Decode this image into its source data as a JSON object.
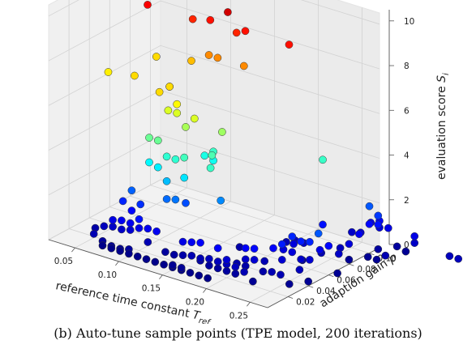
{
  "caption": "(b) Auto-tune sample points (TPE model, 200 iterations)",
  "chart_data": {
    "type": "scatter3d",
    "xlabel": "reference time constant T_ref",
    "ylabel": "adaption gain p",
    "zlabel": "evaluation score S_i",
    "xticks": [
      "0.05",
      "0.10",
      "0.15",
      "0.20",
      "0.25"
    ],
    "yticks": [
      "0.02",
      "0.04",
      "0.06",
      "0.08",
      "0.10"
    ],
    "zticks": [
      "0",
      "2",
      "4",
      "6",
      "8",
      "10"
    ],
    "xlim": [
      0.02,
      0.27
    ],
    "ylim": [
      0.0,
      0.11
    ],
    "zlim": [
      0,
      10.5
    ],
    "colormap": "jet",
    "grid": true,
    "points": [
      [
        0.04,
        0.08,
        8.8
      ],
      [
        0.05,
        0.08,
        6.6
      ],
      [
        0.08,
        0.09,
        8.4
      ],
      [
        0.1,
        0.09,
        8.6
      ],
      [
        0.12,
        0.09,
        9.2
      ],
      [
        0.13,
        0.09,
        8.4
      ],
      [
        0.14,
        0.09,
        8.6
      ],
      [
        0.19,
        0.09,
        8.6
      ],
      [
        0.09,
        0.08,
        6.9
      ],
      [
        0.11,
        0.08,
        7.4
      ],
      [
        0.12,
        0.08,
        7.4
      ],
      [
        0.15,
        0.08,
        7.4
      ],
      [
        0.03,
        0.05,
        6.4
      ],
      [
        0.06,
        0.05,
        6.6
      ],
      [
        0.1,
        0.05,
        6.6
      ],
      [
        0.1,
        0.05,
        6.6
      ],
      [
        0.1,
        0.04,
        6.6
      ],
      [
        0.12,
        0.04,
        6.3
      ],
      [
        0.11,
        0.04,
        5.9
      ],
      [
        0.12,
        0.04,
        5.9
      ],
      [
        0.13,
        0.04,
        5.4
      ],
      [
        0.14,
        0.04,
        5.9
      ],
      [
        0.11,
        0.03,
        4.8
      ],
      [
        0.12,
        0.03,
        4.2
      ],
      [
        0.13,
        0.03,
        4.2
      ],
      [
        0.14,
        0.03,
        4.4
      ],
      [
        0.16,
        0.04,
        4.5
      ],
      [
        0.17,
        0.03,
        4.3
      ],
      [
        0.14,
        0.05,
        4.0
      ],
      [
        0.15,
        0.05,
        3.9
      ],
      [
        0.15,
        0.05,
        4.3
      ],
      [
        0.14,
        0.03,
        3.5
      ],
      [
        0.12,
        0.03,
        3.1
      ],
      [
        0.16,
        0.05,
        5.3
      ],
      [
        0.1,
        0.03,
        4.8
      ],
      [
        0.1,
        0.03,
        3.7
      ],
      [
        0.11,
        0.03,
        3.6
      ],
      [
        0.08,
        0.03,
        2.2
      ],
      [
        0.13,
        0.04,
        2.0
      ],
      [
        0.17,
        0.04,
        2.6
      ],
      [
        0.24,
        0.08,
        4.3
      ],
      [
        0.07,
        0.03,
        1.6
      ],
      [
        0.08,
        0.03,
        1.3
      ],
      [
        0.09,
        0.03,
        1.7
      ],
      [
        0.09,
        0.02,
        1.1
      ],
      [
        0.1,
        0.02,
        1.4
      ],
      [
        0.11,
        0.02,
        1.1
      ],
      [
        0.12,
        0.02,
        1.1
      ],
      [
        0.12,
        0.03,
        2.3
      ],
      [
        0.13,
        0.03,
        2.4
      ],
      [
        0.11,
        0.02,
        0.5
      ],
      [
        0.05,
        0.02,
        0.4
      ],
      [
        0.06,
        0.02,
        0.6
      ],
      [
        0.07,
        0.02,
        0.7
      ],
      [
        0.08,
        0.02,
        0.7
      ],
      [
        0.09,
        0.02,
        0.8
      ],
      [
        0.1,
        0.02,
        1.0
      ],
      [
        0.07,
        0.02,
        1.0
      ],
      [
        0.08,
        0.02,
        1.1
      ],
      [
        0.07,
        0.01,
        0.3
      ],
      [
        0.08,
        0.01,
        0.2
      ],
      [
        0.09,
        0.01,
        0.2
      ],
      [
        0.06,
        0.01,
        0.5
      ],
      [
        0.1,
        0.01,
        0.3
      ],
      [
        0.07,
        0.01,
        0.1
      ],
      [
        0.08,
        0.01,
        0.1
      ],
      [
        0.09,
        0.01,
        0.1
      ],
      [
        0.1,
        0.01,
        0.1
      ],
      [
        0.11,
        0.01,
        0.1
      ],
      [
        0.12,
        0.01,
        0.1
      ],
      [
        0.13,
        0.02,
        0.3
      ],
      [
        0.14,
        0.02,
        0.3
      ],
      [
        0.15,
        0.02,
        0.4
      ],
      [
        0.16,
        0.02,
        0.5
      ],
      [
        0.17,
        0.02,
        0.4
      ],
      [
        0.18,
        0.02,
        0.6
      ],
      [
        0.19,
        0.02,
        0.6
      ],
      [
        0.2,
        0.02,
        0.6
      ],
      [
        0.21,
        0.02,
        0.6
      ],
      [
        0.22,
        0.02,
        0.5
      ],
      [
        0.2,
        0.02,
        0.8
      ],
      [
        0.21,
        0.03,
        0.7
      ],
      [
        0.22,
        0.03,
        0.8
      ],
      [
        0.23,
        0.04,
        1.2
      ],
      [
        0.24,
        0.04,
        1.5
      ],
      [
        0.24,
        0.05,
        1.6
      ],
      [
        0.25,
        0.05,
        1.5
      ],
      [
        0.26,
        0.05,
        1.6
      ],
      [
        0.27,
        0.05,
        2.1
      ],
      [
        0.23,
        0.06,
        0.9
      ],
      [
        0.15,
        0.02,
        1.0
      ],
      [
        0.16,
        0.02,
        1.1
      ],
      [
        0.17,
        0.02,
        1.2
      ],
      [
        0.19,
        0.02,
        1.2
      ],
      [
        0.21,
        0.03,
        1.2
      ],
      [
        0.22,
        0.03,
        1.3
      ],
      [
        0.16,
        0.01,
        0.1
      ],
      [
        0.17,
        0.01,
        0.1
      ],
      [
        0.16,
        0.01,
        0.2
      ],
      [
        0.17,
        0.02,
        0.5
      ],
      [
        0.18,
        0.01,
        0.1
      ],
      [
        0.18,
        0.02,
        0.3
      ],
      [
        0.19,
        0.02,
        0.3
      ],
      [
        0.2,
        0.02,
        0.3
      ],
      [
        0.21,
        0.02,
        0.3
      ],
      [
        0.23,
        0.03,
        0.4
      ],
      [
        0.24,
        0.03,
        0.5
      ],
      [
        0.25,
        0.03,
        0.5
      ],
      [
        0.26,
        0.04,
        0.6
      ],
      [
        0.24,
        0.04,
        0.8
      ],
      [
        0.22,
        0.04,
        0.5
      ],
      [
        0.25,
        0.05,
        0.7
      ],
      [
        0.26,
        0.05,
        0.8
      ],
      [
        0.27,
        0.06,
        1.3
      ],
      [
        0.26,
        0.06,
        1.0
      ],
      [
        0.27,
        0.07,
        0.7
      ],
      [
        0.27,
        0.08,
        0.9
      ],
      [
        0.27,
        0.09,
        1.1
      ],
      [
        0.26,
        0.08,
        0.6
      ],
      [
        0.27,
        0.1,
        1.3
      ],
      [
        0.24,
        0.08,
        1.4
      ],
      [
        0.27,
        0.1,
        2.1
      ],
      [
        0.25,
        0.07,
        0.5
      ],
      [
        0.23,
        0.07,
        0.7
      ],
      [
        0.28,
        0.1,
        1.8
      ],
      [
        0.24,
        0.05,
        0.9
      ],
      [
        0.23,
        0.05,
        0.9
      ],
      [
        0.25,
        0.1,
        0.7
      ],
      [
        0.26,
        0.1,
        0.8
      ],
      [
        0.27,
        0.11,
        0.9
      ],
      [
        0.26,
        0.11,
        1.0
      ],
      [
        0.15,
        0.01,
        0.1
      ],
      [
        0.14,
        0.01,
        0.1
      ],
      [
        0.13,
        0.01,
        0.1
      ],
      [
        0.15,
        0.01,
        0.2
      ],
      [
        0.19,
        0.01,
        0.1
      ],
      [
        0.21,
        0.03,
        0.4
      ],
      [
        0.2,
        0.03,
        0.4
      ],
      [
        0.22,
        0.07,
        0.7
      ],
      [
        0.21,
        0.07,
        0.5
      ],
      [
        0.18,
        0.05,
        0.4
      ],
      [
        0.28,
        0.11,
        1.0
      ],
      [
        0.27,
        0.11,
        1.2
      ],
      [
        0.28,
        0.1,
        1.4
      ],
      [
        0.24,
        0.06,
        0.3
      ],
      [
        0.23,
        0.02,
        0.2
      ],
      [
        0.26,
        0.03,
        0.2
      ],
      [
        0.28,
        0.06,
        0.2
      ],
      [
        0.27,
        0.04,
        0.2
      ],
      [
        0.3,
        0.09,
        0.5
      ],
      [
        0.31,
        0.11,
        0.7
      ],
      [
        0.29,
        0.11,
        0.3
      ],
      [
        0.3,
        0.11,
        0.2
      ],
      [
        0.28,
        0.1,
        0.3
      ],
      [
        0.31,
        0.11,
        1.0
      ],
      [
        0.28,
        0.09,
        0.2
      ],
      [
        0.29,
        0.09,
        0.2
      ],
      [
        0.27,
        0.08,
        0.2
      ],
      [
        0.35,
        0.11,
        0.6
      ],
      [
        0.36,
        0.11,
        0.6
      ]
    ]
  }
}
